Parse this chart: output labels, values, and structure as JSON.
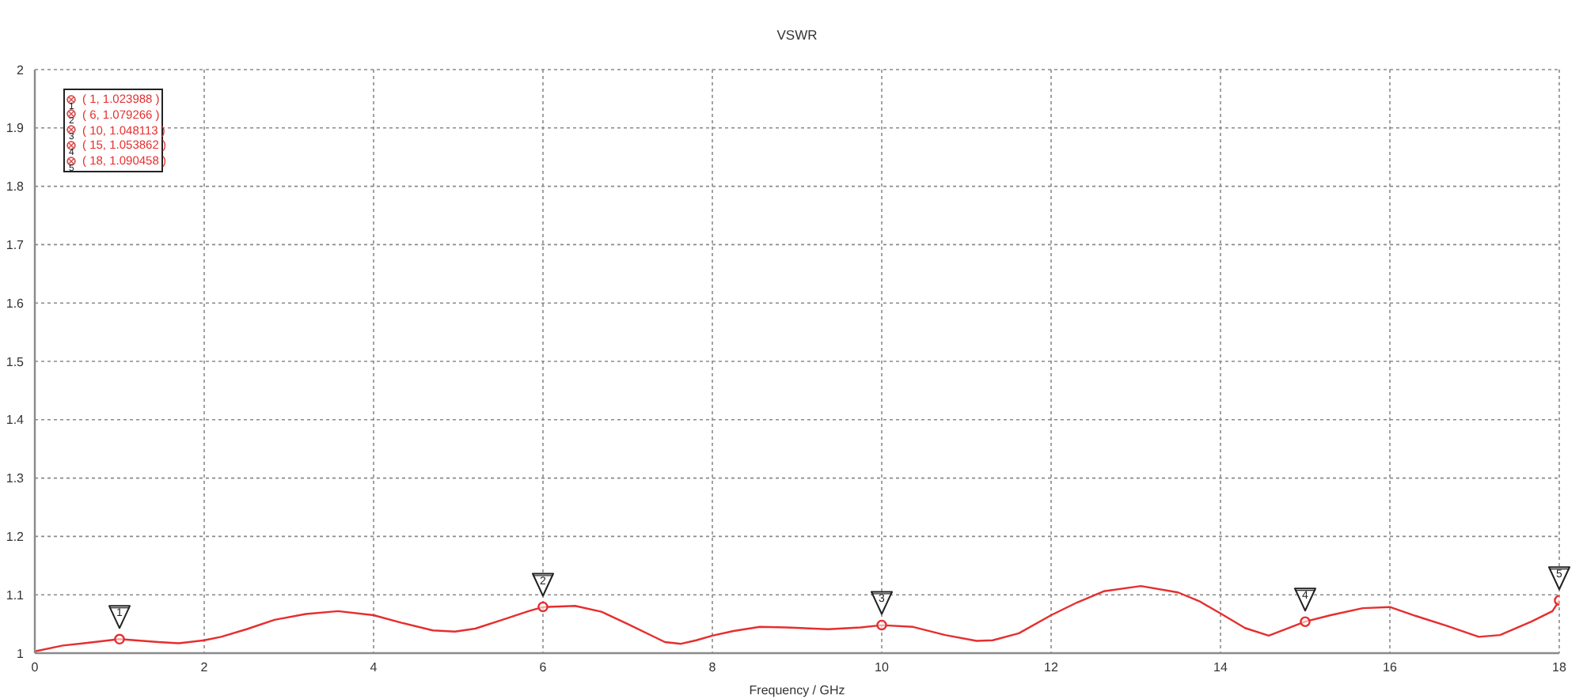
{
  "chart_data": {
    "type": "line",
    "title": "VSWR",
    "xlabel": "Frequency / GHz",
    "xlim": [
      0,
      18
    ],
    "xticks": [
      0,
      2,
      4,
      6,
      8,
      10,
      12,
      14,
      16,
      18
    ],
    "ylim": [
      1,
      2
    ],
    "yticks": [
      1,
      1.1,
      1.2,
      1.3,
      1.4,
      1.5,
      1.6,
      1.7,
      1.8,
      1.9,
      2
    ],
    "grid": true,
    "series": [
      {
        "color": "#e62e2e",
        "x": [
          0,
          0.33,
          0.58,
          1,
          1.46,
          1.7,
          2,
          2.2,
          2.5,
          2.83,
          3.2,
          3.58,
          4,
          4.33,
          4.7,
          4.96,
          5.2,
          5.52,
          5.83,
          6,
          6.38,
          6.69,
          7,
          7.44,
          7.63,
          7.81,
          8,
          8.25,
          8.56,
          8.87,
          9.37,
          9.75,
          10,
          10.37,
          10.75,
          11.12,
          11.31,
          11.62,
          12,
          12.31,
          12.62,
          13.06,
          13.5,
          13.75,
          14,
          14.29,
          14.57,
          15,
          15.3,
          15.68,
          16,
          16.3,
          16.67,
          17.05,
          17.3,
          17.67,
          17.92,
          18
        ],
        "values": [
          1.003,
          1.013,
          1.017,
          1.024,
          1.019,
          1.017,
          1.022,
          1.028,
          1.041,
          1.057,
          1.067,
          1.072,
          1.065,
          1.052,
          1.039,
          1.037,
          1.042,
          1.057,
          1.072,
          1.079,
          1.081,
          1.071,
          1.05,
          1.019,
          1.016,
          1.022,
          1.03,
          1.038,
          1.045,
          1.044,
          1.041,
          1.044,
          1.048,
          1.045,
          1.031,
          1.021,
          1.022,
          1.034,
          1.065,
          1.087,
          1.106,
          1.115,
          1.104,
          1.089,
          1.068,
          1.043,
          1.03,
          1.054,
          1.065,
          1.077,
          1.079,
          1.064,
          1.047,
          1.028,
          1.031,
          1.054,
          1.072,
          1.09
        ]
      },
      {
        "type": "scatter",
        "color": "#e62e2e",
        "marker": "circle",
        "x": [
          1,
          6,
          10,
          15,
          18
        ],
        "values": [
          1.023988,
          1.079266,
          1.048113,
          1.053862,
          1.090458
        ]
      }
    ],
    "annotations": [
      {
        "text": "1",
        "x": 1,
        "y": 1.023988
      },
      {
        "text": "2",
        "x": 6,
        "y": 1.079266
      },
      {
        "text": "3",
        "x": 10,
        "y": 1.048113
      },
      {
        "text": "4",
        "x": 15,
        "y": 1.053862
      },
      {
        "text": "5",
        "x": 18,
        "y": 1.090458
      },
      "( 1, 1.023988 )",
      "( 6, 1.079266 )",
      "( 10, 1.048113 )",
      "( 15, 1.053862 )",
      "( 18, 1.090458 )"
    ]
  }
}
